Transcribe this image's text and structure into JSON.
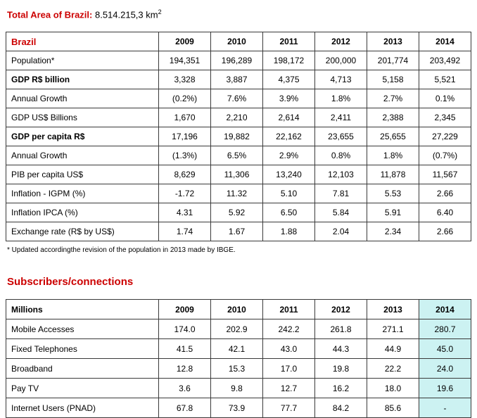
{
  "colors": {
    "accent_red": "#cc0000",
    "highlight": "#ccf2f2"
  },
  "title": {
    "label": "Total Area of Brazil:",
    "value": " 8.514.215,3 km",
    "superscript": "2"
  },
  "table1": {
    "header": {
      "first": "Brazil",
      "years": [
        "2009",
        "2010",
        "2011",
        "2012",
        "2013",
        "2014"
      ]
    },
    "rows": [
      {
        "label": "Population*",
        "bold": false,
        "values": [
          "194,351",
          "196,289",
          "198,172",
          "200,000",
          "201,774",
          "203,492"
        ]
      },
      {
        "label": "GDP R$ billion",
        "bold": true,
        "values": [
          "3,328",
          "3,887",
          "4,375",
          "4,713",
          "5,158",
          "5,521"
        ]
      },
      {
        "label": "Annual Growth",
        "bold": false,
        "values": [
          "(0.2%)",
          "7.6%",
          "3.9%",
          "1.8%",
          "2.7%",
          "0.1%"
        ]
      },
      {
        "label": "GDP US$ Billions",
        "bold": false,
        "values": [
          "1,670",
          "2,210",
          "2,614",
          "2,411",
          "2,388",
          "2,345"
        ]
      },
      {
        "label": "GDP per capita R$",
        "bold": true,
        "values": [
          "17,196",
          "19,882",
          "22,162",
          "23,655",
          "25,655",
          "27,229"
        ]
      },
      {
        "label": "Annual Growth",
        "bold": false,
        "values": [
          "(1.3%)",
          "6.5%",
          "2.9%",
          "0.8%",
          "1.8%",
          "(0.7%)"
        ]
      },
      {
        "label": "PIB per capita US$",
        "bold": false,
        "values": [
          "8,629",
          "11,306",
          "13,240",
          "12,103",
          "11,878",
          "11,567"
        ]
      },
      {
        "label": "Inflation - IGPM (%)",
        "bold": false,
        "values": [
          "-1.72",
          "11.32",
          "5.10",
          "7.81",
          "5.53",
          "2.66"
        ]
      },
      {
        "label": "Inflation IPCA (%)",
        "bold": false,
        "values": [
          "4.31",
          "5.92",
          "6.50",
          "5.84",
          "5.91",
          "6.40"
        ]
      },
      {
        "label": "Exchange rate (R$ by US$)",
        "bold": false,
        "values": [
          "1.74",
          "1.67",
          "1.88",
          "2.04",
          "2.34",
          "2.66"
        ]
      }
    ],
    "footnote": "* Updated accordingthe revision of the population in 2013 made by IBGE."
  },
  "section2": {
    "title": "Subscribers/connections"
  },
  "table2": {
    "header": {
      "first": "Millions",
      "years": [
        "2009",
        "2010",
        "2011",
        "2012",
        "2013",
        "2014"
      ]
    },
    "rows": [
      {
        "label": "Mobile Accesses",
        "bold": false,
        "values": [
          "174.0",
          "202.9",
          "242.2",
          "261.8",
          "271.1",
          "280.7"
        ]
      },
      {
        "label": "Fixed Telephones",
        "bold": false,
        "values": [
          "41.5",
          "42.1",
          "43.0",
          "44.3",
          "44.9",
          "45.0"
        ]
      },
      {
        "label": "Broadband",
        "bold": false,
        "values": [
          "12.8",
          "15.3",
          "17.0",
          "19.8",
          "22.2",
          "24.0"
        ]
      },
      {
        "label": "Pay TV",
        "bold": false,
        "values": [
          "3.6",
          "9.8",
          "12.7",
          "16.2",
          "18.0",
          "19.6"
        ]
      },
      {
        "label": "Internet Users (PNAD)",
        "bold": false,
        "values": [
          "67.8",
          "73.9",
          "77.7",
          "84.2",
          "85.6",
          "-"
        ]
      }
    ]
  }
}
